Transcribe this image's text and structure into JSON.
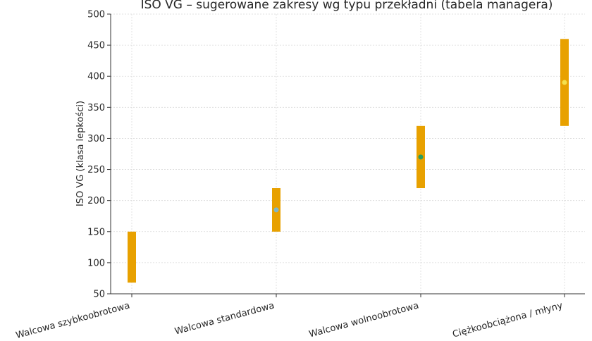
{
  "chart_data": {
    "type": "range-bar",
    "title": "ISO VG – sugerowane zakresy wg typu przekładni (tabela managera)",
    "xlabel": "",
    "ylabel": "ISO VG (klasa lepkości)",
    "ylim": [
      50,
      500
    ],
    "yticks": [
      50,
      100,
      150,
      200,
      250,
      300,
      350,
      400,
      450,
      500
    ],
    "grid": true,
    "categories": [
      "Walcowa szybkoobrotowa",
      "Walcowa standardowa",
      "Walcowa wolnoobrotowa",
      "Ciężkoobciążona / młyny"
    ],
    "ranges": [
      {
        "low": 68,
        "high": 150
      },
      {
        "low": 150,
        "high": 220
      },
      {
        "low": 220,
        "high": 320
      },
      {
        "low": 320,
        "high": 460
      }
    ],
    "markers": [
      null,
      185,
      270,
      390
    ],
    "bar_color": "#E8A100",
    "marker_colors": [
      null,
      "#7EB6C8",
      "#2A9D5C",
      "#F4E04D"
    ]
  }
}
